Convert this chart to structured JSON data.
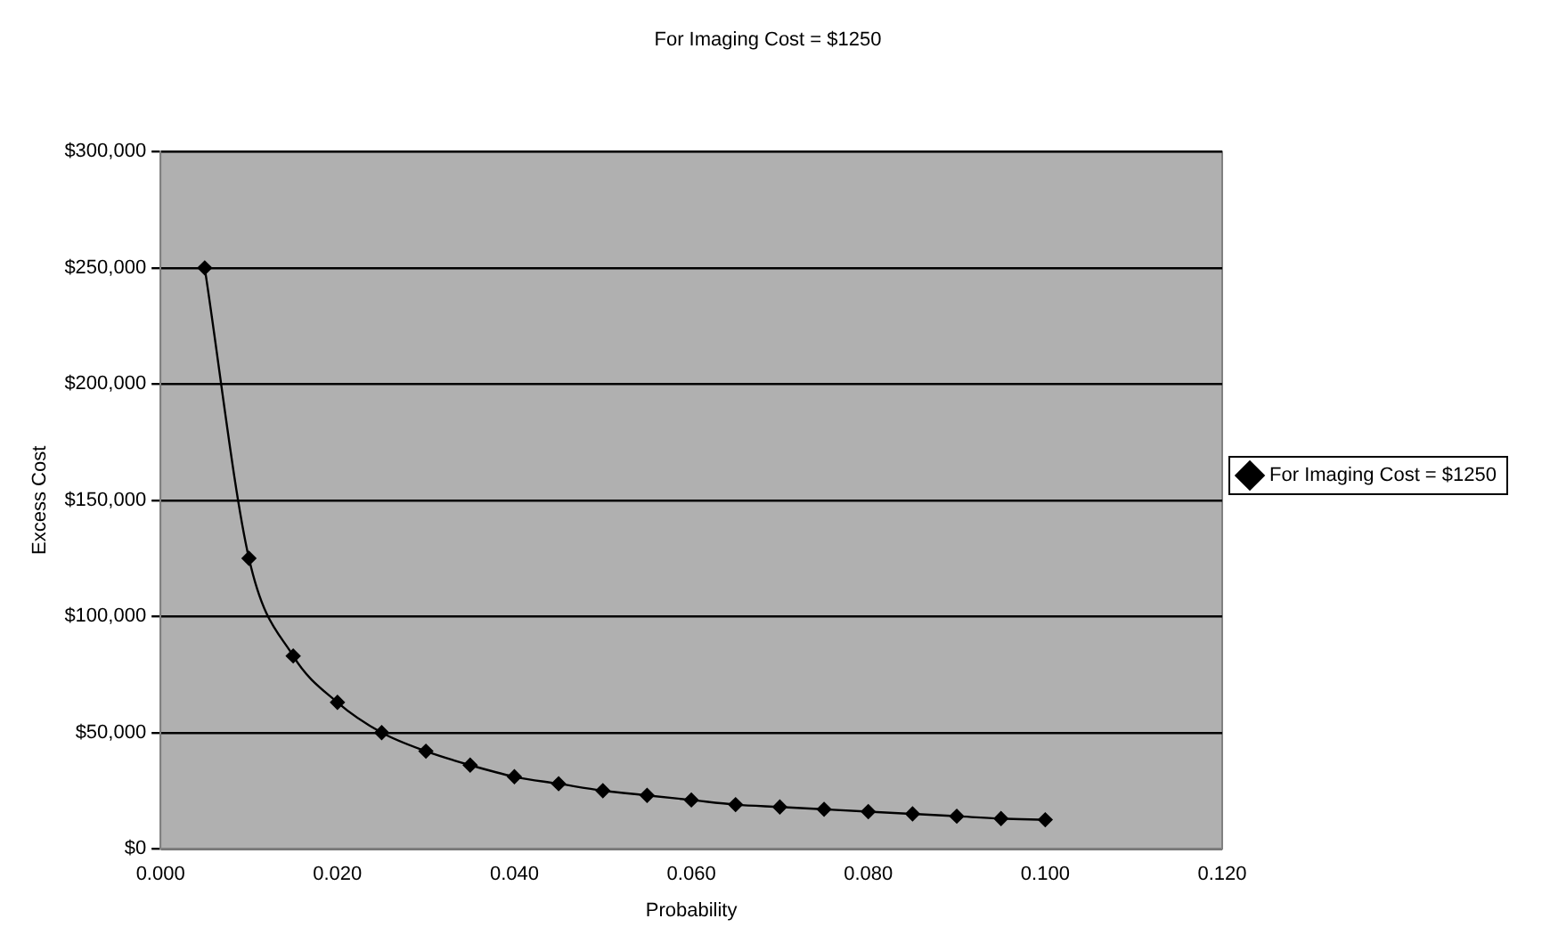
{
  "chart_data": {
    "type": "line",
    "title": "For Imaging Cost = $1250",
    "xlabel": "Probability",
    "ylabel": "Excess Cost",
    "x": [
      0.005,
      0.01,
      0.015,
      0.02,
      0.025,
      0.03,
      0.035,
      0.04,
      0.045,
      0.05,
      0.055,
      0.06,
      0.065,
      0.07,
      0.075,
      0.08,
      0.085,
      0.09,
      0.095,
      0.1
    ],
    "series": [
      {
        "name": "For Imaging Cost = $1250",
        "color": "#000000",
        "values": [
          250000,
          125000,
          83000,
          63000,
          50000,
          42000,
          36000,
          31000,
          28000,
          25000,
          23000,
          21000,
          19000,
          18000,
          17000,
          16000,
          15000,
          14000,
          13000,
          12500
        ]
      }
    ],
    "xlim": [
      0,
      0.12
    ],
    "xticks": [
      {
        "value": 0,
        "label": "0.000"
      },
      {
        "value": 0.02,
        "label": "0.020"
      },
      {
        "value": 0.04,
        "label": "0.040"
      },
      {
        "value": 0.06,
        "label": "0.060"
      },
      {
        "value": 0.08,
        "label": "0.080"
      },
      {
        "value": 0.1,
        "label": "0.100"
      },
      {
        "value": 0.12,
        "label": "0.120"
      }
    ],
    "ylim": [
      0,
      300000
    ],
    "yticks": [
      {
        "value": 0,
        "label": "$0"
      },
      {
        "value": 50000,
        "label": "$50,000"
      },
      {
        "value": 100000,
        "label": "$100,000"
      },
      {
        "value": 150000,
        "label": "$150,000"
      },
      {
        "value": 200000,
        "label": "$200,000"
      },
      {
        "value": 250000,
        "label": "$250,000"
      },
      {
        "value": 300000,
        "label": "$300,000"
      }
    ],
    "grid": "y",
    "legend": "right",
    "marker": "diamond",
    "line_style": "solid"
  }
}
